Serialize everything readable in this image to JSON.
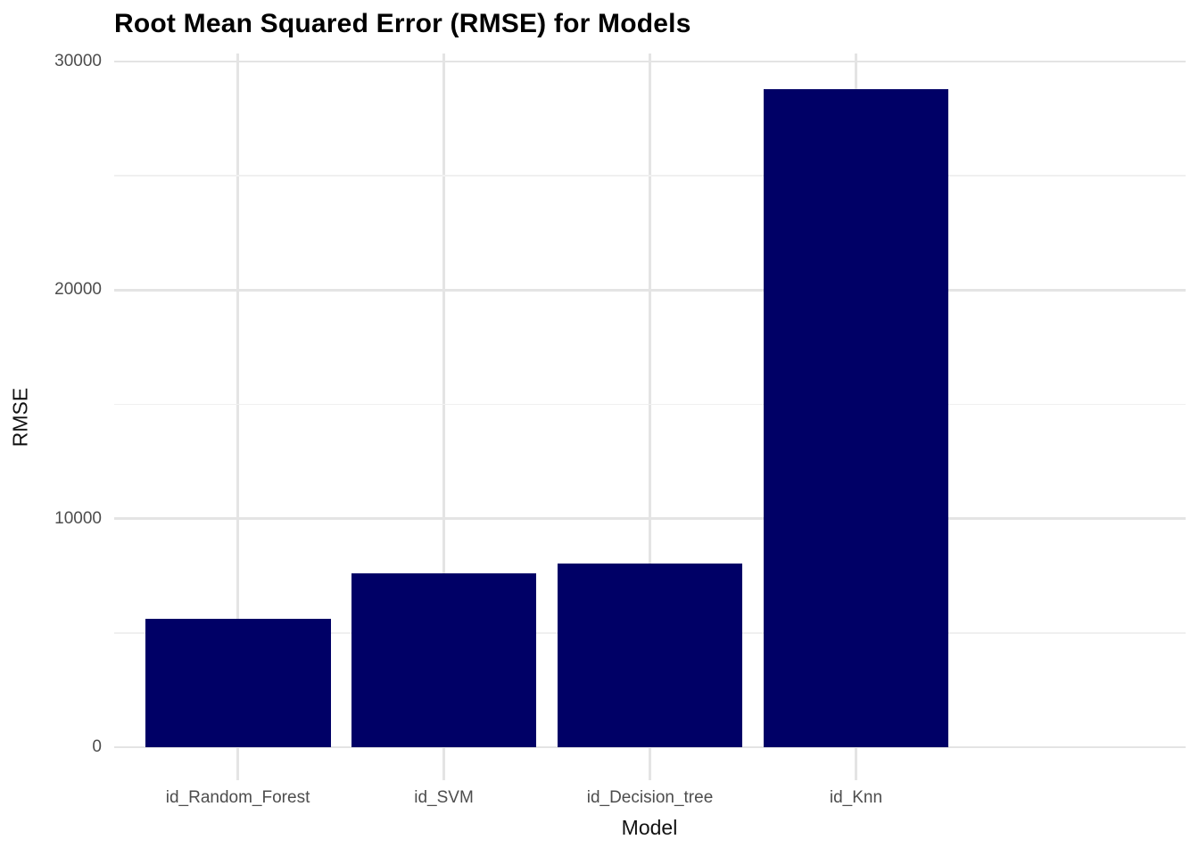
{
  "chart_data": {
    "type": "bar",
    "title": "Root Mean Squared Error (RMSE) for Models",
    "xlabel": "Model",
    "ylabel": "RMSE",
    "categories": [
      "id_Random_Forest",
      "id_SVM",
      "id_Decision_tree",
      "id_Knn"
    ],
    "values": [
      5600,
      7600,
      8050,
      28800
    ],
    "ylim": [
      0,
      30000
    ],
    "yticks": [
      0,
      10000,
      20000,
      30000
    ],
    "ytick_labels": [
      "0",
      "10000",
      "20000",
      "30000"
    ],
    "minor_yticks": [
      5000,
      15000,
      25000
    ],
    "grid": true,
    "legend": false,
    "colors": {
      "bar_fill": "#000066",
      "background": "#ffffff",
      "grid_major": "#e4e4e4",
      "grid_minor": "#f0f0f0",
      "tick_label": "#4d4d4d",
      "axis_title": "#111111",
      "title": "#000000"
    }
  }
}
